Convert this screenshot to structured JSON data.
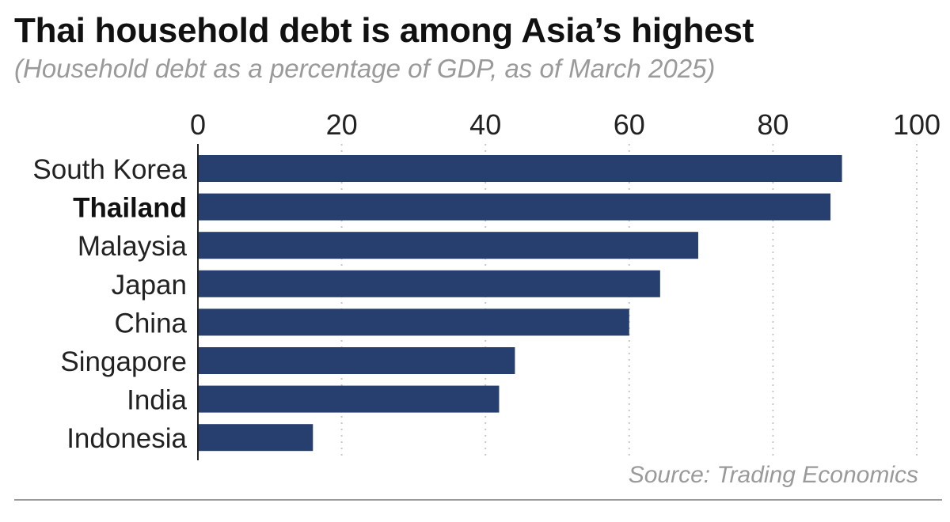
{
  "header": {
    "title": "Thai household debt is among Asia’s highest",
    "subtitle": "(Household debt as a percentage of GDP, as of March 2025)"
  },
  "footer": {
    "source": "Source: Trading Economics"
  },
  "colors": {
    "bar": "#263f6e",
    "grid": "#c8c8c8",
    "axis": "#222222",
    "muted_text": "#9a9a9a"
  },
  "chart_data": {
    "type": "bar",
    "orientation": "horizontal",
    "categories": [
      "South Korea",
      "Thailand",
      "Malaysia",
      "Japan",
      "China",
      "Singapore",
      "India",
      "Indonesia"
    ],
    "values": [
      89.6,
      88.0,
      69.6,
      64.3,
      60.0,
      44.1,
      41.9,
      16.0
    ],
    "highlight": "Thailand",
    "xlim": [
      0,
      100
    ],
    "xticks": [
      0,
      20,
      40,
      60,
      80,
      100
    ],
    "xaxis_position": "top",
    "grid": true,
    "grid_style": "dotted"
  }
}
